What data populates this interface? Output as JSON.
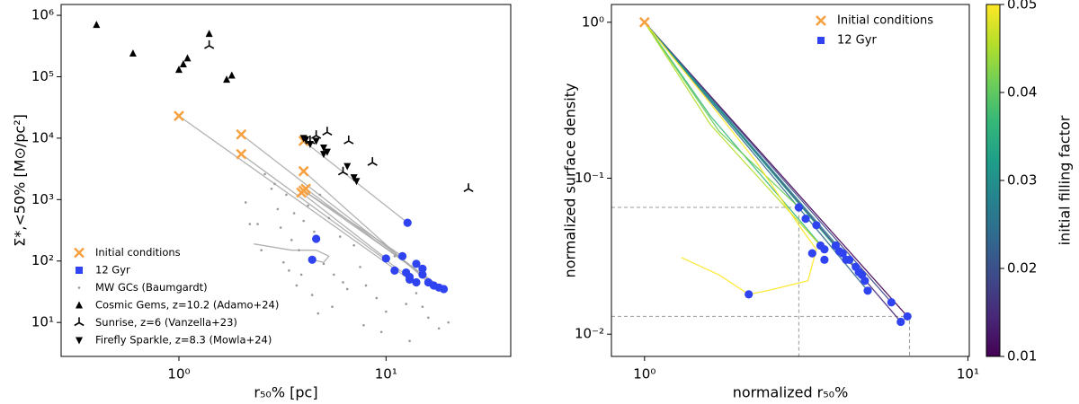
{
  "chart_data": [
    {
      "type": "scatter",
      "xlabel": "r₅₀% [pc]",
      "ylabel": "Σ*,<50% [M⊙/pc²]",
      "log_x": true,
      "log_y": true,
      "xlim": [
        0.27,
        40
      ],
      "ylim": [
        2.8,
        1500000
      ],
      "xticks": [
        {
          "value": 1,
          "label": "10⁰"
        },
        {
          "value": 10,
          "label": "10¹"
        }
      ],
      "yticks": [
        {
          "value": 10,
          "label": "10¹"
        },
        {
          "value": 100,
          "label": "10²"
        },
        {
          "value": 1000,
          "label": "10³"
        },
        {
          "value": 10000,
          "label": "10⁴"
        },
        {
          "value": 100000,
          "label": "10⁵"
        },
        {
          "value": 1000000,
          "label": "10⁶"
        }
      ],
      "legend": "lower left",
      "lines": [
        {
          "color": "#aaaaaa",
          "x": [
            1.0,
            13
          ],
          "values": [
            23000,
            50
          ]
        },
        {
          "color": "#aaaaaa",
          "x": [
            2.0,
            15
          ],
          "values": [
            11500,
            60
          ]
        },
        {
          "color": "#aaaaaa",
          "x": [
            2.0,
            14
          ],
          "values": [
            5500,
            45
          ]
        },
        {
          "color": "#aaaaaa",
          "x": [
            4.0,
            12.7
          ],
          "values": [
            9000,
            420
          ]
        },
        {
          "color": "#aaaaaa",
          "x": [
            4.0,
            16
          ],
          "values": [
            2900,
            45
          ]
        },
        {
          "color": "#aaaaaa",
          "x": [
            4.0,
            19
          ],
          "values": [
            1400,
            35
          ]
        },
        {
          "color": "#aaaaaa",
          "x": [
            4.1,
            18
          ],
          "values": [
            1500,
            37
          ]
        },
        {
          "color": "#aaaaaa",
          "x": [
            3.9,
            10
          ],
          "values": [
            1300,
            110
          ]
        },
        {
          "color": "#aaaaaa",
          "x": [
            4.0,
            12
          ],
          "values": [
            1400,
            120
          ]
        },
        {
          "color": "#aaaaaa",
          "x": [
            2.3,
            3.5,
            4.6,
            5.3,
            5.0,
            4.4
          ],
          "values": [
            190,
            150,
            150,
            120,
            95,
            105
          ]
        }
      ],
      "series": [
        {
          "name": "Initial conditions",
          "color": "#f7a040",
          "marker": "x",
          "x": [
            1.0,
            2.0,
            2.0,
            4.0,
            4.0,
            4.0,
            4.1,
            3.9
          ],
          "values": [
            23000,
            11500,
            5500,
            9000,
            2900,
            1400,
            1500,
            1300
          ]
        },
        {
          "name": "12 Gyr",
          "color": "#2f44f0",
          "marker": "o",
          "legend_marker": "s",
          "x": [
            12.7,
            4.6,
            4.4,
            10,
            11,
            12,
            13,
            14,
            15,
            16,
            17,
            18,
            19,
            14,
            13,
            15,
            12.5
          ],
          "values": [
            420,
            230,
            105,
            110,
            70,
            120,
            55,
            90,
            60,
            45,
            40,
            37,
            35,
            45,
            50,
            75,
            65
          ]
        },
        {
          "name": "MW GCs (Baumgardt)",
          "color": "#999999",
          "marker": ".",
          "x": [
            2.1,
            2.4,
            2.6,
            2.8,
            3.0,
            3.1,
            3.3,
            3.5,
            3.6,
            3.8,
            4.0,
            4.2,
            4.5,
            4.8,
            5.0,
            5.3,
            5.6,
            6.0,
            6.5,
            7.0,
            7.5,
            8.0,
            9.0,
            10.0,
            11.0,
            12.5,
            14.0,
            16.0,
            18.0,
            20.0,
            3.2,
            3.9,
            4.4,
            5.5,
            6.2,
            2.2,
            2.9,
            3.4,
            4.7,
            7.8,
            9.5,
            13.0,
            15.0,
            2.5,
            3.7
          ],
          "values": [
            900,
            400,
            2600,
            1500,
            700,
            350,
            1200,
            220,
            600,
            150,
            450,
            800,
            300,
            1200,
            90,
            500,
            60,
            250,
            35,
            180,
            80,
            40,
            25,
            15,
            120,
            20,
            30,
            12,
            8,
            10,
            95,
            60,
            28,
            18,
            45,
            400,
            1800,
            70,
            14,
            9,
            7,
            5,
            18,
            150,
            40
          ]
        },
        {
          "name": "Cosmic Gems, z=10.2 (Adamo+24)",
          "color": "#000000",
          "marker": "^",
          "x": [
            0.4,
            0.6,
            1.0,
            1.05,
            1.1,
            1.4,
            1.7,
            1.8
          ],
          "values": [
            700000,
            240000,
            130000,
            160000,
            200000,
            500000,
            90000,
            105000
          ]
        },
        {
          "name": "Sunrise, z=6 (Vanzella+23)",
          "color": "#000000",
          "marker": "tri_up",
          "x": [
            1.4,
            4.3,
            4.6,
            5.2,
            6.6,
            6.2,
            8.6,
            25
          ],
          "values": [
            320000,
            9000,
            11000,
            12500,
            9000,
            2800,
            4000,
            1500
          ]
        },
        {
          "name": "Firefly Sparkle, z=8.3 (Mowla+24)",
          "color": "#000000",
          "marker": "v",
          "x": [
            4.0,
            4.1,
            4.3,
            4.6,
            5.0,
            5.2,
            5.0,
            6.5,
            7.0,
            7.2
          ],
          "values": [
            10000,
            9500,
            8000,
            9000,
            7000,
            6000,
            5500,
            3500,
            2300,
            2000
          ]
        }
      ]
    },
    {
      "type": "scatter",
      "xlabel": "normalized r₅₀%",
      "ylabel": "normalized surface density",
      "log_x": true,
      "log_y": true,
      "xlim": [
        0.79,
        10.1
      ],
      "ylim": [
        0.0072,
        1.3
      ],
      "xticks": [
        {
          "value": 1,
          "label": "10⁰"
        },
        {
          "value": 10,
          "label": "10¹"
        }
      ],
      "yticks": [
        {
          "value": 0.01,
          "label": "10⁻²"
        },
        {
          "value": 0.1,
          "label": "10⁻¹"
        },
        {
          "value": 1,
          "label": "10⁰"
        }
      ],
      "legend": "upper right",
      "reference_lines": {
        "x": [
          3.0,
          6.6
        ],
        "values": [
          0.065,
          0.013
        ]
      },
      "lines": [
        {
          "color": "#440154",
          "x": [
            1,
            6.5
          ],
          "values": [
            1,
            0.013
          ]
        },
        {
          "color": "#482878",
          "x": [
            1,
            6.2
          ],
          "values": [
            1,
            0.012
          ]
        },
        {
          "color": "#3e4989",
          "x": [
            1,
            5.8
          ],
          "values": [
            1,
            0.016
          ]
        },
        {
          "color": "#31688e",
          "x": [
            1,
            4.9
          ],
          "values": [
            1,
            0.019
          ]
        },
        {
          "color": "#26828e",
          "x": [
            1,
            4.5
          ],
          "values": [
            1,
            0.027
          ]
        },
        {
          "color": "#1f9e89",
          "x": [
            1,
            4.0
          ],
          "values": [
            1,
            0.034
          ]
        },
        {
          "color": "#35b779",
          "x": [
            1,
            1.6,
            3.6
          ],
          "values": [
            1,
            0.25,
            0.035
          ]
        },
        {
          "color": "#6ece58",
          "x": [
            1,
            1.7,
            3.0
          ],
          "values": [
            1,
            0.2,
            0.065
          ]
        },
        {
          "color": "#b5de2b",
          "x": [
            1,
            1.6,
            3.5
          ],
          "values": [
            1,
            0.22,
            0.037
          ]
        },
        {
          "color": "#fde725",
          "x": [
            1,
            1.6,
            2.2,
            3.0,
            3.4,
            3.2,
            2.4,
            2.1,
            1.7,
            1.3
          ],
          "values": [
            1,
            0.3,
            0.13,
            0.05,
            0.035,
            0.022,
            0.019,
            0.018,
            0.024,
            0.031
          ]
        }
      ],
      "series": [
        {
          "name": "Initial conditions",
          "color": "#f7a040",
          "marker": "x",
          "x": [
            1
          ],
          "values": [
            1
          ]
        },
        {
          "name": "12 Gyr",
          "color": "#2f44f0",
          "marker": "o",
          "legend_marker": "s",
          "x": [
            3.0,
            3.15,
            3.4,
            3.5,
            3.6,
            3.9,
            4.0,
            4.1,
            4.3,
            4.5,
            4.6,
            4.8,
            4.7,
            4.9,
            5.8,
            6.5,
            6.2,
            3.6,
            3.3,
            2.1,
            4.2
          ],
          "values": [
            0.065,
            0.055,
            0.05,
            0.037,
            0.035,
            0.037,
            0.034,
            0.033,
            0.03,
            0.027,
            0.025,
            0.022,
            0.024,
            0.019,
            0.016,
            0.013,
            0.012,
            0.03,
            0.033,
            0.018,
            0.03
          ]
        }
      ],
      "colorbar": {
        "label": "initial filling factor",
        "colormap": "viridis",
        "lim": [
          0.01,
          0.05
        ],
        "ticks": [
          0.01,
          0.02,
          0.03,
          0.04,
          0.05
        ]
      }
    }
  ]
}
